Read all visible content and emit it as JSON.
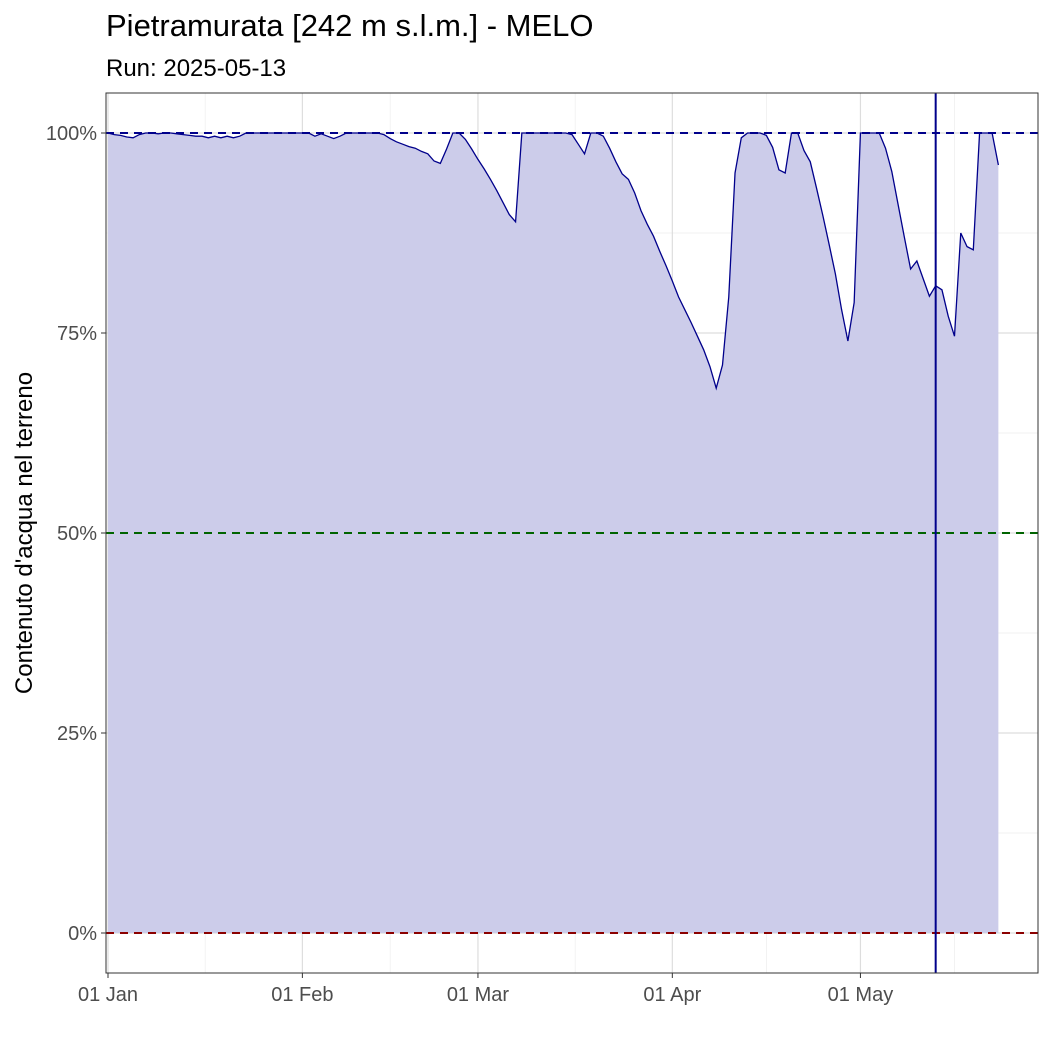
{
  "chart_data": {
    "type": "area",
    "title": "Pietramurata [242 m s.l.m.] - MELO",
    "subtitle": "Run: 2025-05-13",
    "xlabel": "",
    "ylabel": "Contenuto d'acqua nel terreno",
    "x_range": [
      "2025-01-01",
      "2025-05-29"
    ],
    "ylim": [
      -5,
      105
    ],
    "y_ticks": [
      0,
      25,
      50,
      75,
      100
    ],
    "y_tick_labels": [
      "0%",
      "25%",
      "50%",
      "75%",
      "100%"
    ],
    "x_ticks": [
      "2025-01-01",
      "2025-02-01",
      "2025-03-01",
      "2025-04-01",
      "2025-05-01"
    ],
    "x_tick_labels": [
      "01 Jan",
      "01 Feb",
      "01 Mar",
      "01 Apr",
      "01 May"
    ],
    "grid": true,
    "reference_lines": [
      {
        "y": 100,
        "color": "#00008b",
        "style": "dashed"
      },
      {
        "y": 50,
        "color": "#006400",
        "style": "dashed"
      },
      {
        "y": 0,
        "color": "#8b0000",
        "style": "dashed"
      }
    ],
    "vertical_line": {
      "x": "2025-05-13",
      "color": "#00008b"
    },
    "series": [
      {
        "color": "#00008b",
        "fill": "#ccccea",
        "points": [
          [
            "2025-01-01",
            100
          ],
          [
            "2025-01-02",
            99.8
          ],
          [
            "2025-01-03",
            99.7
          ],
          [
            "2025-01-04",
            99.5
          ],
          [
            "2025-01-05",
            99.4
          ],
          [
            "2025-01-06",
            99.8
          ],
          [
            "2025-01-07",
            100
          ],
          [
            "2025-01-08",
            100
          ],
          [
            "2025-01-09",
            99.9
          ],
          [
            "2025-01-10",
            100
          ],
          [
            "2025-01-11",
            100
          ],
          [
            "2025-01-12",
            99.9
          ],
          [
            "2025-01-13",
            99.8
          ],
          [
            "2025-01-14",
            99.7
          ],
          [
            "2025-01-15",
            99.6
          ],
          [
            "2025-01-16",
            99.6
          ],
          [
            "2025-01-17",
            99.4
          ],
          [
            "2025-01-18",
            99.6
          ],
          [
            "2025-01-19",
            99.4
          ],
          [
            "2025-01-20",
            99.6
          ],
          [
            "2025-01-21",
            99.4
          ],
          [
            "2025-01-22",
            99.6
          ],
          [
            "2025-01-23",
            100
          ],
          [
            "2025-01-24",
            100
          ],
          [
            "2025-01-25",
            100
          ],
          [
            "2025-01-26",
            100
          ],
          [
            "2025-01-27",
            100
          ],
          [
            "2025-01-28",
            100
          ],
          [
            "2025-01-29",
            100
          ],
          [
            "2025-01-30",
            100
          ],
          [
            "2025-01-31",
            100
          ],
          [
            "2025-02-01",
            100
          ],
          [
            "2025-02-02",
            100
          ],
          [
            "2025-02-03",
            99.6
          ],
          [
            "2025-02-04",
            99.9
          ],
          [
            "2025-02-05",
            99.6
          ],
          [
            "2025-02-06",
            99.3
          ],
          [
            "2025-02-07",
            99.6
          ],
          [
            "2025-02-08",
            100
          ],
          [
            "2025-02-09",
            100
          ],
          [
            "2025-02-10",
            100
          ],
          [
            "2025-02-11",
            100
          ],
          [
            "2025-02-12",
            100
          ],
          [
            "2025-02-13",
            100
          ],
          [
            "2025-02-14",
            99.8
          ],
          [
            "2025-02-15",
            99.3
          ],
          [
            "2025-02-16",
            98.9
          ],
          [
            "2025-02-17",
            98.6
          ],
          [
            "2025-02-18",
            98.3
          ],
          [
            "2025-02-19",
            98.1
          ],
          [
            "2025-02-20",
            97.7
          ],
          [
            "2025-02-21",
            97.4
          ],
          [
            "2025-02-22",
            96.5
          ],
          [
            "2025-02-23",
            96.2
          ],
          [
            "2025-02-24",
            98
          ],
          [
            "2025-02-25",
            100
          ],
          [
            "2025-02-26",
            100
          ],
          [
            "2025-02-27",
            99.2
          ],
          [
            "2025-02-28",
            98
          ],
          [
            "2025-03-01",
            96.7
          ],
          [
            "2025-03-02",
            95.5
          ],
          [
            "2025-03-03",
            94.2
          ],
          [
            "2025-03-04",
            92.8
          ],
          [
            "2025-03-05",
            91.3
          ],
          [
            "2025-03-06",
            89.8
          ],
          [
            "2025-03-07",
            88.9
          ],
          [
            "2025-03-08",
            100
          ],
          [
            "2025-03-09",
            100
          ],
          [
            "2025-03-10",
            100
          ],
          [
            "2025-03-11",
            100
          ],
          [
            "2025-03-12",
            100
          ],
          [
            "2025-03-13",
            100
          ],
          [
            "2025-03-14",
            100
          ],
          [
            "2025-03-15",
            100
          ],
          [
            "2025-03-16",
            99.8
          ],
          [
            "2025-03-17",
            98.6
          ],
          [
            "2025-03-18",
            97.4
          ],
          [
            "2025-03-19",
            100
          ],
          [
            "2025-03-20",
            100
          ],
          [
            "2025-03-21",
            99.6
          ],
          [
            "2025-03-22",
            98.1
          ],
          [
            "2025-03-23",
            96.4
          ],
          [
            "2025-03-24",
            94.9
          ],
          [
            "2025-03-25",
            94.2
          ],
          [
            "2025-03-26",
            92.5
          ],
          [
            "2025-03-27",
            90.3
          ],
          [
            "2025-03-28",
            88.6
          ],
          [
            "2025-03-29",
            87.1
          ],
          [
            "2025-03-30",
            85.2
          ],
          [
            "2025-03-31",
            83.4
          ],
          [
            "2025-04-01",
            81.5
          ],
          [
            "2025-04-02",
            79.5
          ],
          [
            "2025-04-03",
            77.9
          ],
          [
            "2025-04-04",
            76.3
          ],
          [
            "2025-04-05",
            74.6
          ],
          [
            "2025-04-06",
            72.9
          ],
          [
            "2025-04-07",
            70.8
          ],
          [
            "2025-04-08",
            68.1
          ],
          [
            "2025-04-09",
            71
          ],
          [
            "2025-04-10",
            79.5
          ],
          [
            "2025-04-11",
            95
          ],
          [
            "2025-04-12",
            99.4
          ],
          [
            "2025-04-13",
            100
          ],
          [
            "2025-04-14",
            100
          ],
          [
            "2025-04-15",
            100
          ],
          [
            "2025-04-16",
            99.7
          ],
          [
            "2025-04-17",
            98.2
          ],
          [
            "2025-04-18",
            95.4
          ],
          [
            "2025-04-19",
            95
          ],
          [
            "2025-04-20",
            100
          ],
          [
            "2025-04-21",
            100
          ],
          [
            "2025-04-22",
            97.8
          ],
          [
            "2025-04-23",
            96.4
          ],
          [
            "2025-04-24",
            93.1
          ],
          [
            "2025-04-25",
            89.7
          ],
          [
            "2025-04-26",
            86.1
          ],
          [
            "2025-04-27",
            82.4
          ],
          [
            "2025-04-28",
            77.9
          ],
          [
            "2025-04-29",
            74
          ],
          [
            "2025-04-30",
            78.8
          ],
          [
            "2025-05-01",
            100
          ],
          [
            "2025-05-02",
            100
          ],
          [
            "2025-05-03",
            100
          ],
          [
            "2025-05-04",
            100
          ],
          [
            "2025-05-05",
            98.1
          ],
          [
            "2025-05-06",
            95.2
          ],
          [
            "2025-05-07",
            91.1
          ],
          [
            "2025-05-08",
            87
          ],
          [
            "2025-05-09",
            83
          ],
          [
            "2025-05-10",
            84
          ],
          [
            "2025-05-11",
            81.8
          ],
          [
            "2025-05-12",
            79.6
          ],
          [
            "2025-05-13",
            80.9
          ],
          [
            "2025-05-14",
            80.4
          ],
          [
            "2025-05-15",
            77.1
          ],
          [
            "2025-05-16",
            74.6
          ],
          [
            "2025-05-17",
            87.5
          ],
          [
            "2025-05-18",
            85.8
          ],
          [
            "2025-05-19",
            85.4
          ],
          [
            "2025-05-20",
            100
          ],
          [
            "2025-05-21",
            100
          ],
          [
            "2025-05-22",
            100
          ],
          [
            "2025-05-23",
            96
          ]
        ]
      }
    ]
  }
}
